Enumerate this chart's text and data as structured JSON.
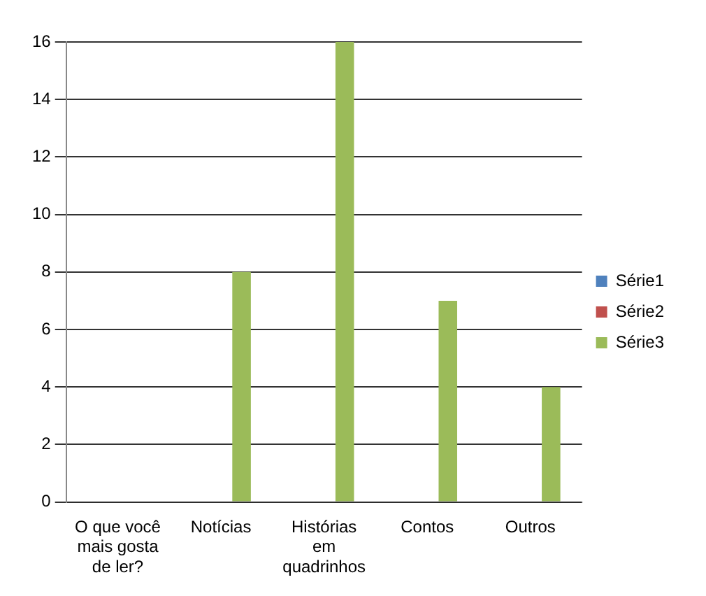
{
  "chart_data": {
    "type": "bar",
    "categories": [
      "O que você mais gosta de ler?",
      "Notícias",
      "Histórias em quadrinhos",
      "Contos",
      "Outros"
    ],
    "series": [
      {
        "name": "Série1",
        "color": "#4f81bd",
        "values": [
          null,
          null,
          null,
          null,
          null
        ]
      },
      {
        "name": "Série2",
        "color": "#c0504d",
        "values": [
          null,
          null,
          null,
          null,
          null
        ]
      },
      {
        "name": "Série3",
        "color": "#9bbb59",
        "values": [
          null,
          8,
          16,
          7,
          4
        ]
      }
    ],
    "ylim": [
      0,
      16
    ],
    "yticks": [
      0,
      2,
      4,
      6,
      8,
      10,
      12,
      14,
      16
    ],
    "grid": "y",
    "legend": "right"
  }
}
